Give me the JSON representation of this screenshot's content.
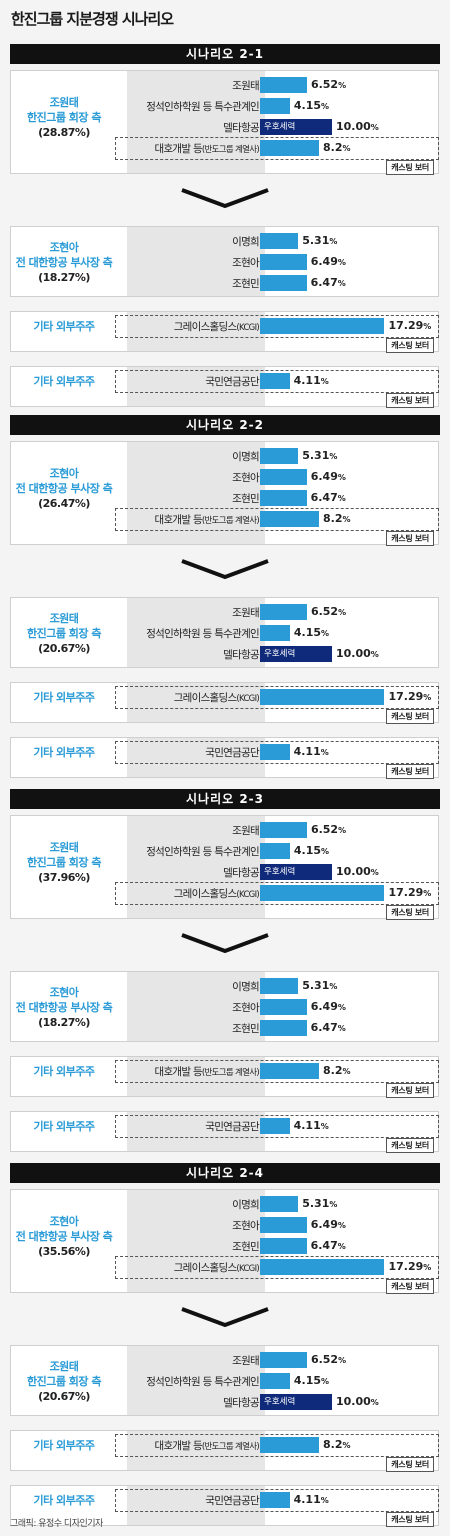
{
  "title": "한진그룹 지분경쟁 시나리오",
  "credit": "그래픽: 유정수 디자인기자",
  "tags": {
    "ally": "우호세력",
    "casting": "캐스팅 보터"
  },
  "colors": {
    "bar": "#2a9bd6",
    "ally_bar": "#0f2a7a",
    "header": "#111111",
    "label": "#2a9bd6"
  },
  "chart_data": {
    "type": "bar",
    "unit": "%",
    "scenarios": [
      {
        "title": "시나리오 2-1",
        "groups": [
          {
            "label": "조원태",
            "sublabel": "한진그룹 회장 측",
            "total": "(28.87%)",
            "rows": [
              {
                "name": "조원태",
                "value": 6.52
              },
              {
                "name": "정석인하학원 등 특수관계인",
                "value": 4.15
              },
              {
                "name": "델타항공",
                "value": 10.0,
                "ally": true
              },
              {
                "name": "대호개발 등",
                "note": "(반도그룹 계열사)",
                "value": 8.2,
                "casting": true
              }
            ]
          },
          {
            "label": "조현아",
            "sublabel": "전 대한항공 부사장 측",
            "total": "(18.27%)",
            "rows": [
              {
                "name": "이명희",
                "value": 5.31
              },
              {
                "name": "조현아",
                "value": 6.49
              },
              {
                "name": "조현민",
                "value": 6.47
              }
            ]
          },
          {
            "label": "기타 외부주주",
            "sublabel": "",
            "total": "",
            "rows": [
              {
                "name": "그레이스홀딩스",
                "note": "(KCGI)",
                "value": 17.29,
                "casting": true
              }
            ]
          },
          {
            "label": "기타 외부주주",
            "sublabel": "",
            "total": "",
            "rows": [
              {
                "name": "국민연금공단",
                "value": 4.11,
                "casting": true
              }
            ]
          }
        ]
      },
      {
        "title": "시나리오 2-2",
        "groups": [
          {
            "label": "조현아",
            "sublabel": "전 대한항공 부사장 측",
            "total": "(26.47%)",
            "rows": [
              {
                "name": "이명희",
                "value": 5.31
              },
              {
                "name": "조현아",
                "value": 6.49
              },
              {
                "name": "조현민",
                "value": 6.47
              },
              {
                "name": "대호개발 등",
                "note": "(반도그룹 계열사)",
                "value": 8.2,
                "casting": true
              }
            ]
          },
          {
            "label": "조원태",
            "sublabel": "한진그룹 회장 측",
            "total": "(20.67%)",
            "rows": [
              {
                "name": "조원태",
                "value": 6.52
              },
              {
                "name": "정석인하학원 등 특수관계인",
                "value": 4.15
              },
              {
                "name": "델타항공",
                "value": 10.0,
                "ally": true
              }
            ]
          },
          {
            "label": "기타 외부주주",
            "sublabel": "",
            "total": "",
            "rows": [
              {
                "name": "그레이스홀딩스",
                "note": "(KCGI)",
                "value": 17.29,
                "casting": true
              }
            ]
          },
          {
            "label": "기타 외부주주",
            "sublabel": "",
            "total": "",
            "rows": [
              {
                "name": "국민연금공단",
                "value": 4.11,
                "casting": true
              }
            ]
          }
        ]
      },
      {
        "title": "시나리오 2-3",
        "groups": [
          {
            "label": "조원태",
            "sublabel": "한진그룹 회장 측",
            "total": "(37.96%)",
            "rows": [
              {
                "name": "조원태",
                "value": 6.52
              },
              {
                "name": "정석인하학원 등 특수관계인",
                "value": 4.15
              },
              {
                "name": "델타항공",
                "value": 10.0,
                "ally": true
              },
              {
                "name": "그레이스홀딩스",
                "note": "(KCGI)",
                "value": 17.29,
                "casting": true
              }
            ]
          },
          {
            "label": "조현아",
            "sublabel": "전 대한항공 부사장 측",
            "total": "(18.27%)",
            "rows": [
              {
                "name": "이명희",
                "value": 5.31
              },
              {
                "name": "조현아",
                "value": 6.49
              },
              {
                "name": "조현민",
                "value": 6.47
              }
            ]
          },
          {
            "label": "기타 외부주주",
            "sublabel": "",
            "total": "",
            "rows": [
              {
                "name": "대호개발 등",
                "note": "(반도그룹 계열사)",
                "value": 8.2,
                "casting": true
              }
            ]
          },
          {
            "label": "기타 외부주주",
            "sublabel": "",
            "total": "",
            "rows": [
              {
                "name": "국민연금공단",
                "value": 4.11,
                "casting": true
              }
            ]
          }
        ]
      },
      {
        "title": "시나리오 2-4",
        "groups": [
          {
            "label": "조현아",
            "sublabel": "전 대한항공 부사장 측",
            "total": "(35.56%)",
            "rows": [
              {
                "name": "이명희",
                "value": 5.31
              },
              {
                "name": "조현아",
                "value": 6.49
              },
              {
                "name": "조현민",
                "value": 6.47
              },
              {
                "name": "그레이스홀딩스",
                "note": "(KCGI)",
                "value": 17.29,
                "casting": true
              }
            ]
          },
          {
            "label": "조원태",
            "sublabel": "한진그룹 회장 측",
            "total": "(20.67%)",
            "rows": [
              {
                "name": "조원태",
                "value": 6.52
              },
              {
                "name": "정석인하학원 등 특수관계인",
                "value": 4.15
              },
              {
                "name": "델타항공",
                "value": 10.0,
                "ally": true
              }
            ]
          },
          {
            "label": "기타 외부주주",
            "sublabel": "",
            "total": "",
            "rows": [
              {
                "name": "대호개발 등",
                "note": "(반도그룹 계열사)",
                "value": 8.2,
                "casting": true
              }
            ]
          },
          {
            "label": "기타 외부주주",
            "sublabel": "",
            "total": "",
            "rows": [
              {
                "name": "국민연금공단",
                "value": 4.11,
                "casting": true
              }
            ]
          }
        ]
      }
    ]
  }
}
